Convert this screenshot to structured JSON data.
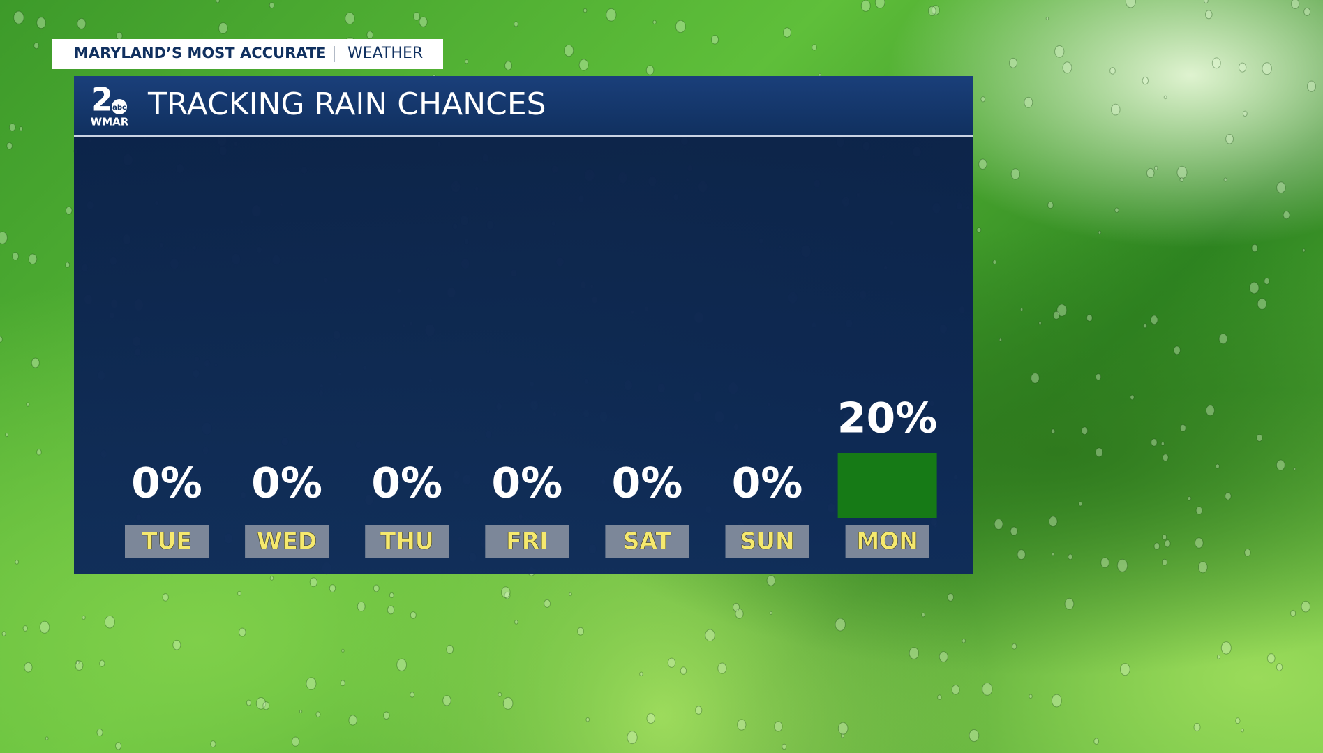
{
  "header": {
    "banner_left": "MARYLAND’S MOST ACCURATE",
    "banner_right": "WEATHER",
    "logo_number": "2",
    "logo_network": "abc",
    "logo_station": "WMAR"
  },
  "chart_data": {
    "type": "bar",
    "title": "TRACKING RAIN CHANCES",
    "categories": [
      "TUE",
      "WED",
      "THU",
      "FRI",
      "SAT",
      "SUN",
      "MON"
    ],
    "values": [
      0,
      0,
      0,
      0,
      0,
      0,
      20
    ],
    "value_labels": [
      "0%",
      "0%",
      "0%",
      "0%",
      "0%",
      "0%",
      "20%"
    ],
    "color": "#167a16"
  }
}
